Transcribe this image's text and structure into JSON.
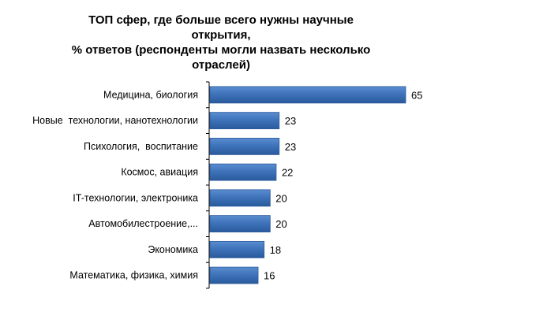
{
  "chart_data": {
    "type": "bar",
    "orientation": "horizontal",
    "title_lines": [
      "ТОП сфер, где больше всего нужны научные",
      "открытия,",
      "% ответов (респонденты могли назвать несколько",
      "отраслей)"
    ],
    "categories": [
      "Медицина, биология",
      "Новые  технологии, нанотехнологии",
      "Психология,  воспитание",
      "Космос, авиация",
      "IT-технологии, электроника",
      "Автомобилестроение,...",
      "Экономика",
      "Математика, физика, химия"
    ],
    "values": [
      65,
      23,
      23,
      22,
      20,
      20,
      18,
      16
    ],
    "xlim": [
      0,
      70
    ],
    "grid": false,
    "legend": "none",
    "bar_color": "#3f73ba",
    "bar_color_dark": "#2a5a9c",
    "bar_color_light": "#5a8dd0"
  }
}
